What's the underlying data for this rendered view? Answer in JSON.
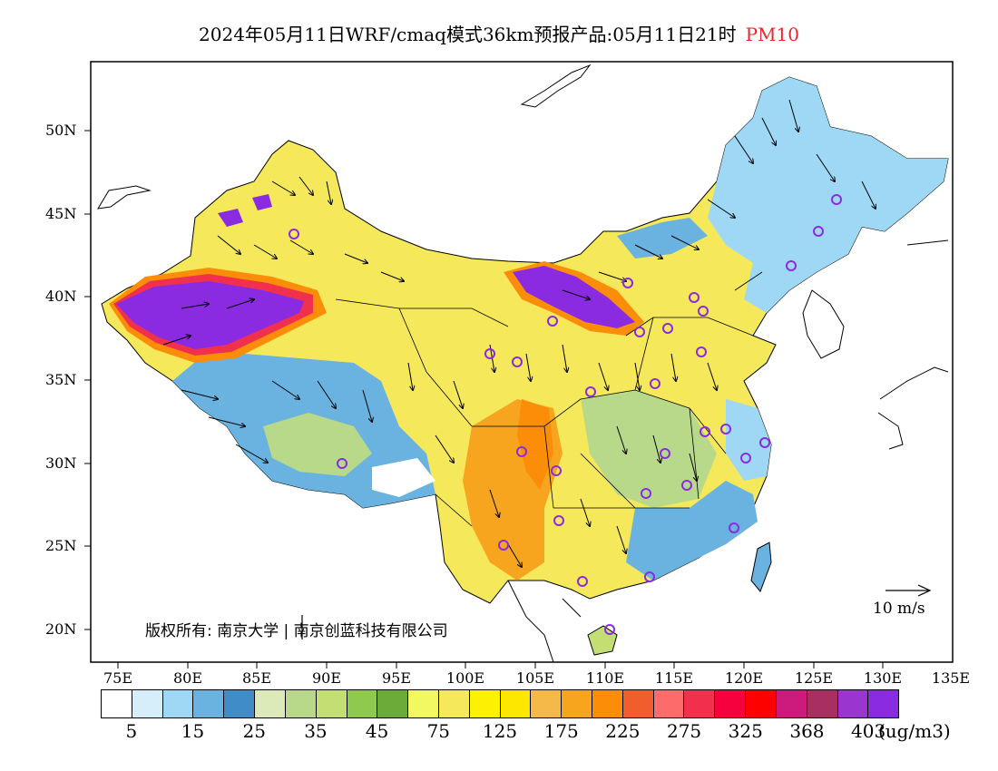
{
  "title": {
    "main": "2024年05月11日WRF/cmaq模式36km预报产品:05月11日21时",
    "pollutant": "PM10"
  },
  "lat_labels": [
    "50N",
    "45N",
    "40N",
    "35N",
    "30N",
    "25N",
    "20N"
  ],
  "lon_labels": [
    "75E",
    "80E",
    "85E",
    "90E",
    "95E",
    "100E",
    "105E",
    "110E",
    "115E",
    "120E",
    "125E",
    "130E",
    "135E"
  ],
  "copyright": "版权所有: 南京大学 | 南京创蓝科技有限公司",
  "wind_reference": "10 m/s",
  "legend": {
    "colors": [
      "#ffffff",
      "#d6eefa",
      "#9fd8f5",
      "#6ab3e0",
      "#3f8cc6",
      "#dceab9",
      "#b9d98a",
      "#c3df74",
      "#8fca4e",
      "#6aab3a",
      "#f2f862",
      "#f5e85a",
      "#fdf000",
      "#fde600",
      "#f5b94a",
      "#f7a51f",
      "#fb8d09",
      "#f25d2e",
      "#fd6b6b",
      "#f0304d",
      "#f7003e",
      "#fd0000",
      "#cc1b7c",
      "#a83060",
      "#9a36cf",
      "#8a2be2"
    ],
    "levels": [
      "5",
      "15",
      "25",
      "35",
      "45",
      "75",
      "125",
      "175",
      "225",
      "275",
      "325",
      "368",
      "403"
    ],
    "unit": "(ug/m3)"
  },
  "cities_label": ""
}
